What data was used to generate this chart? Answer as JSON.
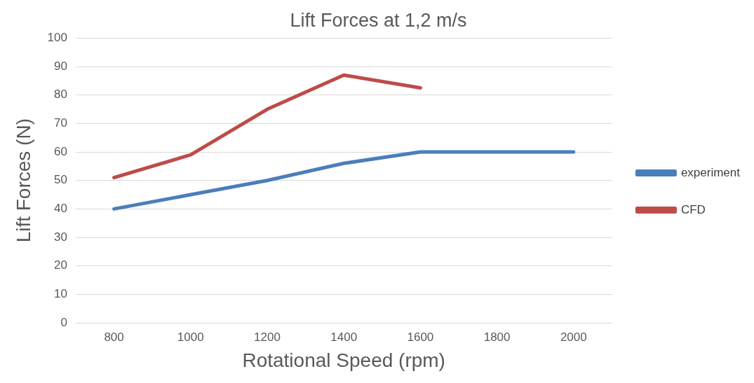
{
  "chart_data": {
    "type": "line",
    "title": "Lift Forces at 1,2 m/s",
    "xlabel": "Rotational Speed (rpm)",
    "ylabel": "Lift Forces (N)",
    "categories": [
      "800",
      "1000",
      "1200",
      "1400",
      "1600",
      "1800",
      "2000"
    ],
    "series": [
      {
        "name": "experiment",
        "color": "#4a7ebb",
        "values": [
          40,
          45,
          50,
          56,
          60,
          60,
          60
        ]
      },
      {
        "name": "CFD",
        "color": "#be4b48",
        "values": [
          51,
          59,
          75,
          87,
          82.5,
          null,
          null
        ]
      }
    ],
    "ylim": [
      0,
      100
    ],
    "yticks": [
      0,
      10,
      20,
      30,
      40,
      50,
      60,
      70,
      80,
      90,
      100
    ],
    "grid": "y",
    "legend": "right",
    "marker": "none",
    "line_style": "solid"
  }
}
